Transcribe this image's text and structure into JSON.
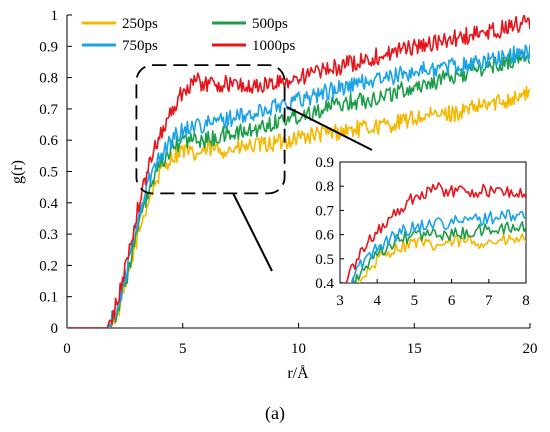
{
  "panel_label": "(a)",
  "chart_data": {
    "type": "line",
    "title": "",
    "xlabel": "r/Å",
    "ylabel": "g(r)",
    "xlim": [
      0,
      20
    ],
    "ylim": [
      0,
      1
    ],
    "xticks": [
      0,
      5,
      10,
      15,
      20
    ],
    "yticks": [
      0,
      0.1,
      0.2,
      0.3,
      0.4,
      0.5,
      0.6,
      0.7,
      0.8,
      0.9,
      1
    ],
    "legend_position": "top-left, two columns",
    "grid": false,
    "series": [
      {
        "name": "250ps",
        "color": "#f5b800",
        "x": [
          0,
          1.8,
          2.2,
          2.6,
          3.0,
          3.4,
          3.8,
          4.2,
          4.6,
          5.0,
          5.5,
          6.0,
          7.0,
          8.0,
          9.0,
          10.0,
          11.0,
          12.0,
          13.0,
          14.0,
          15.0,
          16.0,
          17.0,
          18.0,
          19.0,
          20.0
        ],
        "y": [
          0,
          0,
          0.05,
          0.15,
          0.28,
          0.38,
          0.46,
          0.52,
          0.55,
          0.57,
          0.55,
          0.57,
          0.57,
          0.58,
          0.59,
          0.61,
          0.62,
          0.63,
          0.64,
          0.65,
          0.67,
          0.68,
          0.69,
          0.71,
          0.73,
          0.75
        ]
      },
      {
        "name": "500ps",
        "color": "#1e9e4a",
        "x": [
          0,
          1.8,
          2.2,
          2.6,
          3.0,
          3.4,
          3.8,
          4.2,
          4.6,
          5.0,
          5.5,
          6.0,
          7.0,
          8.0,
          9.0,
          10.0,
          11.0,
          12.0,
          13.0,
          14.0,
          15.0,
          16.0,
          17.0,
          18.0,
          19.0,
          20.0
        ],
        "y": [
          0,
          0,
          0.06,
          0.17,
          0.3,
          0.41,
          0.48,
          0.54,
          0.58,
          0.6,
          0.6,
          0.6,
          0.62,
          0.63,
          0.66,
          0.68,
          0.7,
          0.72,
          0.73,
          0.75,
          0.77,
          0.79,
          0.81,
          0.83,
          0.85,
          0.87
        ]
      },
      {
        "name": "750ps",
        "color": "#1aa3e8",
        "x": [
          0,
          1.8,
          2.2,
          2.6,
          3.0,
          3.4,
          3.8,
          4.2,
          4.6,
          5.0,
          5.5,
          6.0,
          7.0,
          8.0,
          9.0,
          10.0,
          11.0,
          12.0,
          13.0,
          14.0,
          15.0,
          16.0,
          17.0,
          18.0,
          19.0,
          20.0
        ],
        "y": [
          0,
          0,
          0.07,
          0.19,
          0.33,
          0.44,
          0.52,
          0.57,
          0.61,
          0.63,
          0.65,
          0.65,
          0.67,
          0.68,
          0.71,
          0.73,
          0.75,
          0.77,
          0.79,
          0.8,
          0.82,
          0.83,
          0.84,
          0.85,
          0.87,
          0.88
        ]
      },
      {
        "name": "1000ps",
        "color": "#e8141b",
        "x": [
          0,
          1.8,
          2.2,
          2.6,
          3.0,
          3.4,
          3.8,
          4.2,
          4.6,
          5.0,
          5.5,
          6.0,
          7.0,
          8.0,
          9.0,
          10.0,
          11.0,
          12.0,
          13.0,
          14.0,
          15.0,
          16.0,
          17.0,
          18.0,
          19.0,
          20.0
        ],
        "y": [
          0,
          0,
          0.09,
          0.22,
          0.36,
          0.48,
          0.58,
          0.65,
          0.7,
          0.76,
          0.79,
          0.78,
          0.78,
          0.77,
          0.78,
          0.8,
          0.82,
          0.84,
          0.86,
          0.88,
          0.9,
          0.91,
          0.93,
          0.94,
          0.96,
          0.98
        ]
      }
    ],
    "inset": {
      "xlim": [
        3,
        8
      ],
      "ylim": [
        0.4,
        0.9
      ],
      "xticks": [
        3,
        4,
        5,
        6,
        7,
        8
      ],
      "yticks": [
        0.4,
        0.5,
        0.6,
        0.7,
        0.8,
        0.9
      ],
      "zoom_box_x": [
        3,
        9.4
      ],
      "zoom_box_y": [
        0.43,
        0.84
      ]
    }
  }
}
